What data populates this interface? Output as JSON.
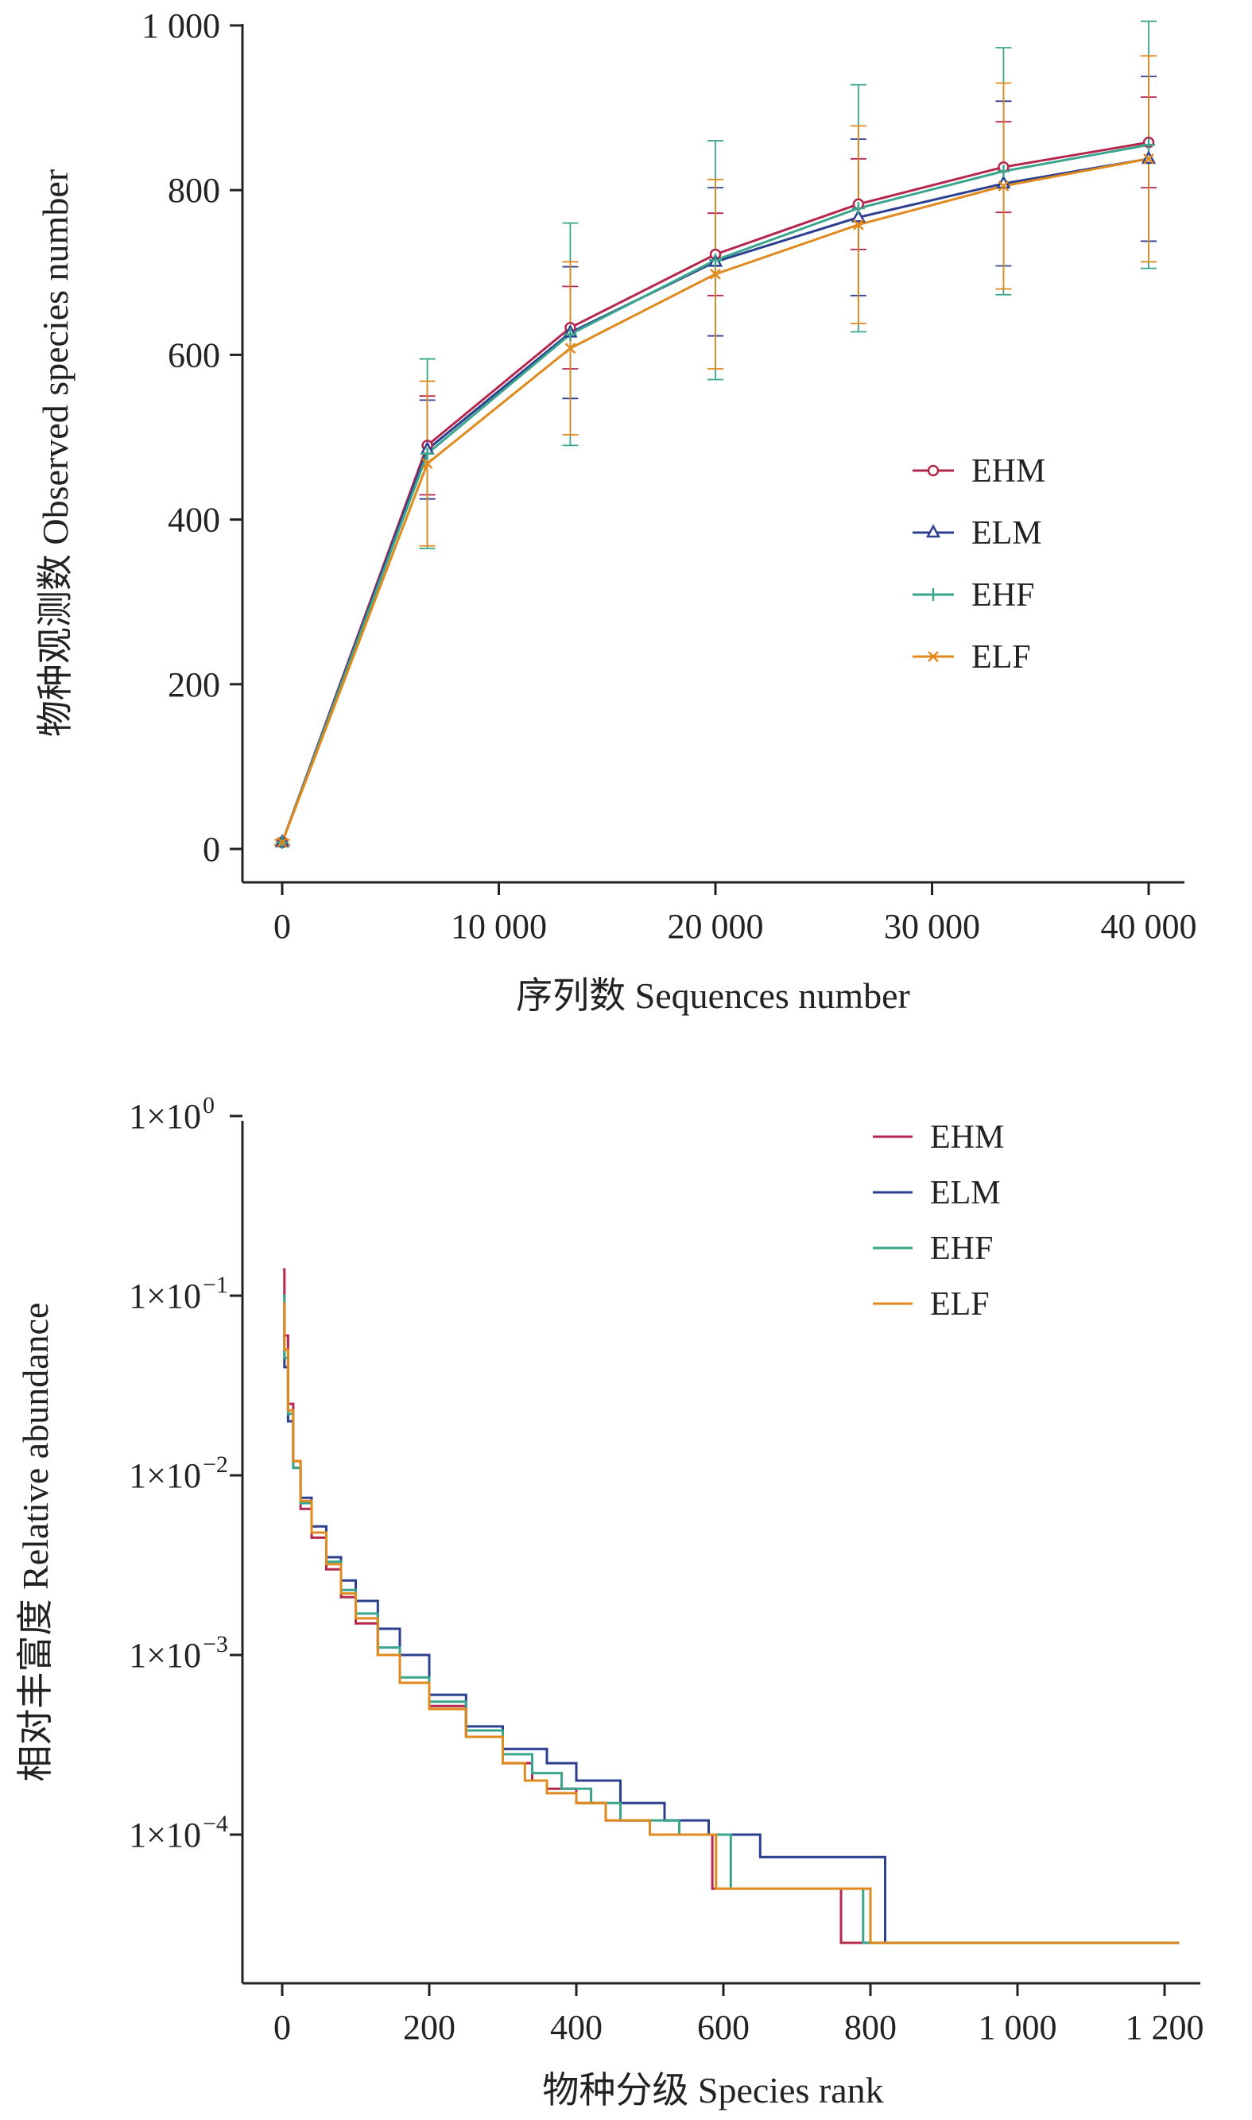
{
  "chart_data": [
    {
      "type": "line",
      "xlabel": "序列数 Sequences number",
      "ylabel": "物种观测数 Observed species number",
      "xlim": [
        -1000,
        41000
      ],
      "ylim": [
        0,
        1000
      ],
      "xticks": [
        0,
        10000,
        20000,
        30000,
        40000
      ],
      "xtick_labels": [
        "0",
        "10 000",
        "20 000",
        "30 000",
        "40 000"
      ],
      "yticks": [
        0,
        200,
        400,
        600,
        800,
        1000
      ],
      "ytick_labels": [
        "0",
        "200",
        "400",
        "600",
        "800",
        "1 000"
      ],
      "legend_position": "center-right",
      "x": [
        0,
        6700,
        13300,
        20000,
        26600,
        33300,
        40000
      ],
      "series": [
        {
          "name": "EHM",
          "color": "#b5284e",
          "marker": "circle",
          "values": [
            8,
            490,
            633,
            722,
            783,
            828,
            858
          ],
          "err": [
            3,
            60,
            50,
            50,
            55,
            55,
            55
          ]
        },
        {
          "name": "ELM",
          "color": "#2d3f8f",
          "marker": "triangle",
          "values": [
            8,
            485,
            627,
            713,
            767,
            808,
            838
          ],
          "err": [
            3,
            60,
            80,
            90,
            95,
            100,
            100
          ]
        },
        {
          "name": "EHF",
          "color": "#3aa58d",
          "marker": "plus",
          "values": [
            8,
            480,
            625,
            715,
            778,
            823,
            855
          ],
          "err": [
            3,
            115,
            135,
            145,
            150,
            150,
            150
          ]
        },
        {
          "name": "ELF",
          "color": "#e08a1e",
          "marker": "x",
          "values": [
            8,
            468,
            608,
            698,
            758,
            805,
            838
          ],
          "err": [
            3,
            100,
            105,
            115,
            120,
            125,
            125
          ]
        }
      ]
    },
    {
      "type": "line",
      "xlabel": "物种分级 Species rank",
      "ylabel": "相对丰富度 Relative abundance",
      "xlim": [
        -50,
        1220
      ],
      "ylim": [
        1.8e-05,
        1
      ],
      "yscale": "log",
      "xticks": [
        0,
        200,
        400,
        600,
        800,
        1000,
        1200
      ],
      "xtick_labels": [
        "0",
        "200",
        "400",
        "600",
        "800",
        "1 000",
        "1 200"
      ],
      "yticks": [
        1,
        0.1,
        0.01,
        0.001,
        0.0001
      ],
      "ytick_base": [
        "1×10",
        "1×10",
        "1×10",
        "1×10",
        "1×10"
      ],
      "ytick_exp": [
        "0",
        "−1",
        "−2",
        "−3",
        "−4"
      ],
      "legend_position": "top-right",
      "series": [
        {
          "name": "EHM",
          "color": "#b5284e",
          "end_rank": 1220,
          "x": [
            1,
            3,
            8,
            15,
            25,
            40,
            60,
            80,
            100,
            130,
            160,
            200,
            250,
            300,
            340,
            360,
            400,
            440,
            500,
            585,
            760,
            1220
          ],
          "values": [
            0.14,
            0.06,
            0.025,
            0.012,
            0.0065,
            0.0045,
            0.003,
            0.0021,
            0.0015,
            0.001,
            0.0007,
            0.00052,
            0.00035,
            0.00025,
            0.0002,
            0.00018,
            0.00015,
            0.00012,
            0.0001,
            5e-05,
            2.5e-05,
            2.5e-05
          ]
        },
        {
          "name": "ELM",
          "color": "#2d3f8f",
          "end_rank": 1220,
          "x": [
            1,
            3,
            8,
            15,
            25,
            40,
            60,
            80,
            100,
            130,
            160,
            200,
            250,
            300,
            360,
            400,
            460,
            520,
            580,
            650,
            820,
            1220
          ],
          "values": [
            0.06,
            0.04,
            0.02,
            0.011,
            0.0075,
            0.0052,
            0.0035,
            0.0026,
            0.002,
            0.0014,
            0.001,
            0.0006,
            0.0004,
            0.0003,
            0.00025,
            0.0002,
            0.00015,
            0.00012,
            0.0001,
            7.5e-05,
            2.5e-05,
            2.5e-05
          ]
        },
        {
          "name": "EHF",
          "color": "#3aa58d",
          "end_rank": 1220,
          "x": [
            1,
            3,
            8,
            15,
            25,
            40,
            60,
            80,
            100,
            130,
            160,
            200,
            250,
            300,
            340,
            380,
            420,
            460,
            540,
            610,
            790,
            1220
          ],
          "values": [
            0.1,
            0.045,
            0.022,
            0.011,
            0.007,
            0.0048,
            0.0033,
            0.0023,
            0.0017,
            0.0011,
            0.00075,
            0.00055,
            0.00038,
            0.00028,
            0.00022,
            0.00018,
            0.00015,
            0.00012,
            0.0001,
            5e-05,
            2.5e-05,
            2.5e-05
          ]
        },
        {
          "name": "ELF",
          "color": "#e08a1e",
          "end_rank": 1220,
          "x": [
            1,
            3,
            8,
            15,
            25,
            40,
            60,
            80,
            100,
            130,
            160,
            200,
            250,
            300,
            330,
            360,
            400,
            440,
            500,
            590,
            800,
            1220
          ],
          "values": [
            0.09,
            0.05,
            0.023,
            0.012,
            0.0072,
            0.0048,
            0.0032,
            0.0022,
            0.0016,
            0.001,
            0.0007,
            0.0005,
            0.00035,
            0.00025,
            0.0002,
            0.00017,
            0.00015,
            0.00012,
            0.0001,
            5e-05,
            2.5e-05,
            2.5e-05
          ]
        }
      ]
    }
  ]
}
